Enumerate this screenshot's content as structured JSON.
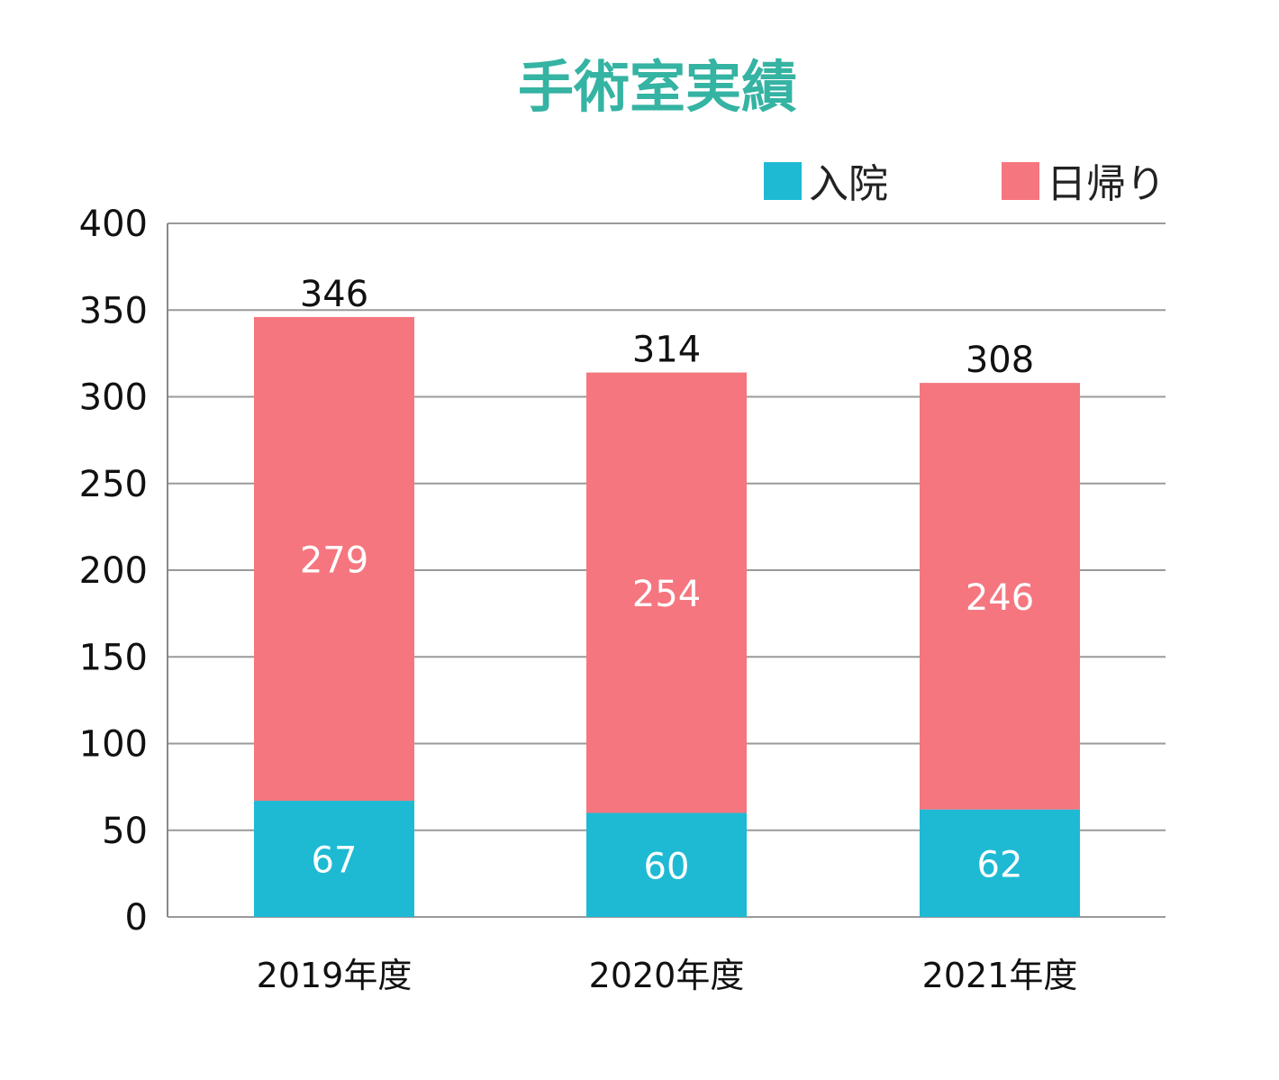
{
  "chart_data": {
    "type": "bar",
    "stacked": true,
    "title": "手術室実績",
    "categories": [
      "2019年度",
      "2020年度",
      "2021年度"
    ],
    "series": [
      {
        "name": "入院",
        "color": "#1ebad4",
        "values": [
          67,
          60,
          62
        ]
      },
      {
        "name": "日帰り",
        "color": "#f5767f",
        "values": [
          279,
          254,
          246
        ]
      }
    ],
    "totals": [
      346,
      314,
      308
    ],
    "y_ticks": [
      "0",
      "50",
      "100",
      "150",
      "200",
      "250",
      "300",
      "350",
      "400"
    ],
    "ylim": [
      0,
      400
    ],
    "grid": true,
    "legend_position": "top-right",
    "title_color": "#35b3a3"
  }
}
